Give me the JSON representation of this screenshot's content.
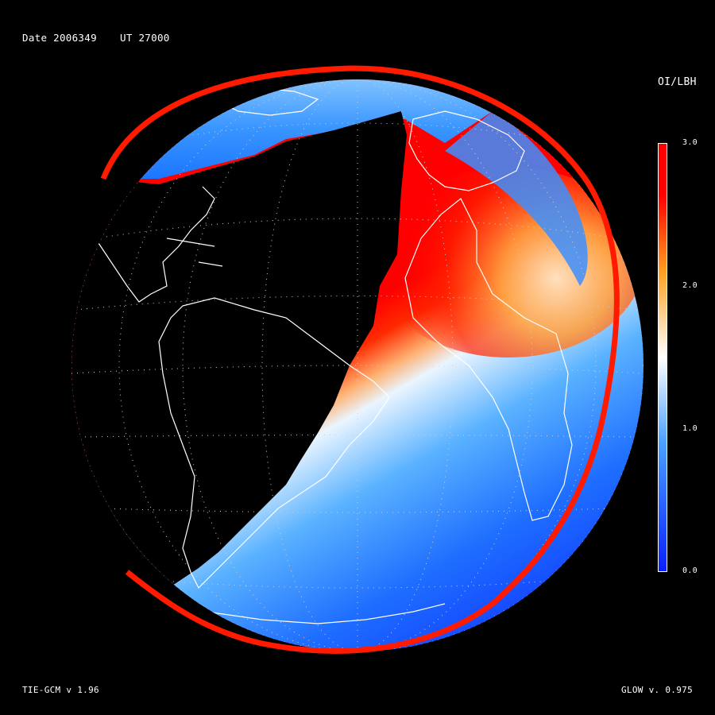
{
  "header": {
    "date_text": "Date 2006349",
    "ut_text": "UT 27000"
  },
  "footer": {
    "model_text": "TIE-GCM v 1.96",
    "glow_text": "GLOW v. 0.975"
  },
  "colorbar": {
    "title": "OI/LBH",
    "ticks": [
      "3.0",
      "2.0",
      "1.0",
      "0.0"
    ],
    "range": [
      0,
      3
    ],
    "colors": {
      "low": "#0a1fff",
      "mid_low": "#4aa0ff",
      "mid": "#ffffff",
      "mid_high": "#ffa020",
      "high": "#ff0000"
    }
  },
  "map": {
    "projection": "orthographic",
    "night_side_color": "#000000",
    "coastline_color": "#ffffff",
    "graticule": "dotted",
    "limb_color": "#ff1a00"
  }
}
